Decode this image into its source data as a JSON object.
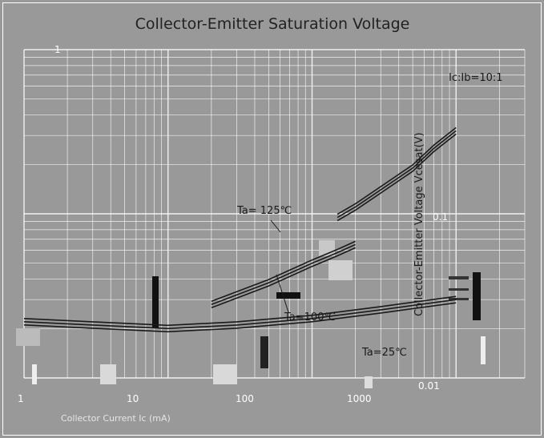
{
  "colors": {
    "background": "#999999",
    "grid": "#ffffff",
    "curve": "#1a1a1a",
    "text": "#222222"
  },
  "chart_data": {
    "type": "line",
    "title": "Collector-Emitter Saturation Voltage",
    "condition_label": "Ic:Ib=10:1",
    "xlabel": "Collector Current Ic (mA)",
    "ylabel": "Collector-Emitter Voltage  Vcesat(V)",
    "x_scale": "log",
    "y_scale": "log",
    "xlim": [
      1,
      3000
    ],
    "ylim": [
      0.01,
      1
    ],
    "x_ticks": [
      "1",
      "10",
      "100",
      "1000"
    ],
    "y_ticks": [
      "1",
      "0.1",
      "0.01"
    ],
    "grid": true,
    "series": [
      {
        "name": "Ta= 125℃",
        "x": [
          150,
          200,
          300,
          500,
          700,
          1000
        ],
        "y": [
          0.095,
          0.11,
          0.14,
          0.19,
          0.25,
          0.32
        ]
      },
      {
        "name": "Ta=100℃",
        "x": [
          20,
          50,
          100,
          150,
          200
        ],
        "y": [
          0.028,
          0.038,
          0.05,
          0.058,
          0.065
        ]
      },
      {
        "name": "Ta=25℃",
        "x": [
          1,
          3,
          10,
          30,
          100,
          300,
          1000
        ],
        "y": [
          0.022,
          0.021,
          0.02,
          0.021,
          0.023,
          0.026,
          0.03
        ]
      }
    ],
    "annotations": [
      "Ta= 125℃",
      "Ta=100℃",
      "Ta=25℃"
    ]
  }
}
